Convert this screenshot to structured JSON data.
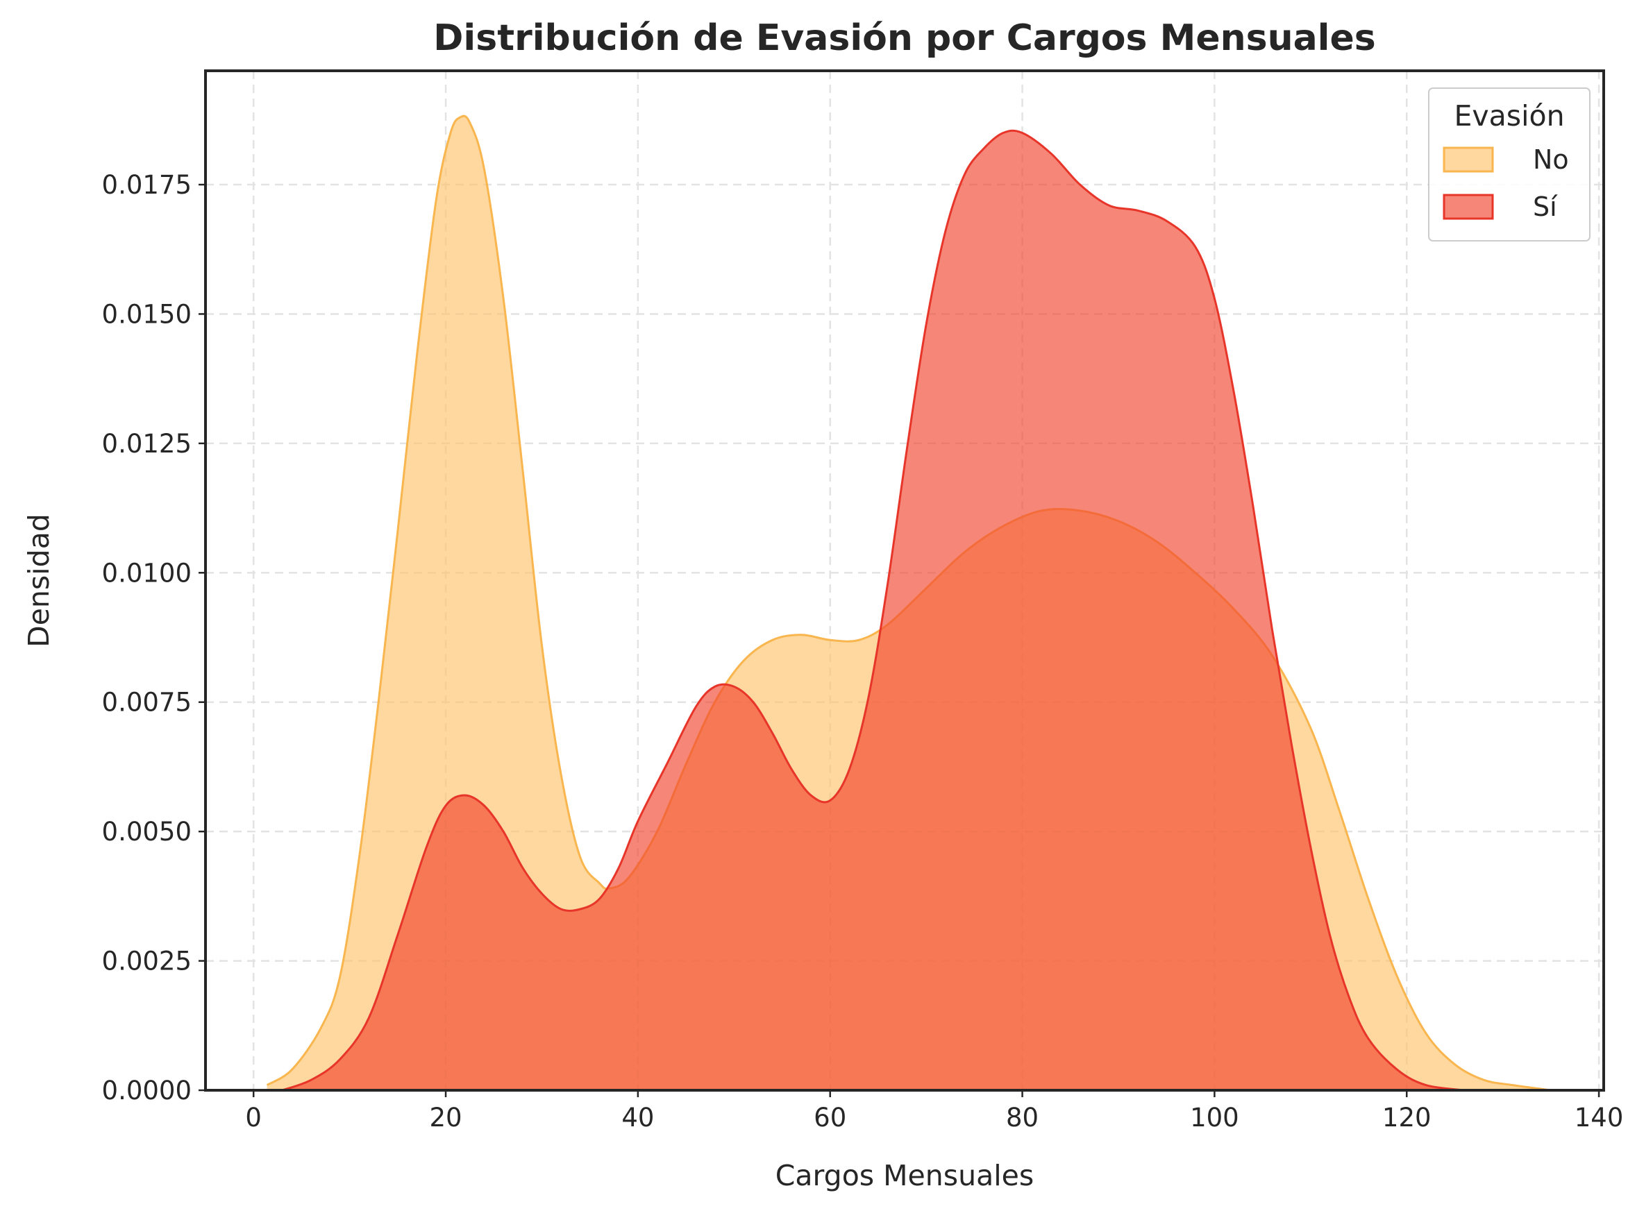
{
  "chart_data": {
    "type": "area",
    "title": "Distribución de Evasión por Cargos Mensuales",
    "xlabel": "Cargos Mensuales",
    "ylabel": "Densidad",
    "xlim": [
      -5,
      140.5
    ],
    "ylim": [
      0,
      0.0197
    ],
    "xticks": [
      0,
      20,
      40,
      60,
      80,
      100,
      120,
      140
    ],
    "xtick_labels": [
      "0",
      "20",
      "40",
      "60",
      "80",
      "100",
      "120",
      "140"
    ],
    "yticks": [
      0,
      0.0025,
      0.005,
      0.0075,
      0.01,
      0.0125,
      0.015,
      0.0175
    ],
    "ytick_labels": [
      "0.0000",
      "0.0025",
      "0.0050",
      "0.0075",
      "0.0100",
      "0.0125",
      "0.0150",
      "0.0175"
    ],
    "grid": true,
    "legend": {
      "title": "Evasión",
      "position": "top-right"
    },
    "series": [
      {
        "name": "No",
        "color": "#fdc36b",
        "edge_color": "#f9b54e",
        "points": [
          [
            1.4,
            0.0001
          ],
          [
            4,
            0.0004
          ],
          [
            7,
            0.0012
          ],
          [
            9,
            0.0022
          ],
          [
            11,
            0.0045
          ],
          [
            13,
            0.0075
          ],
          [
            15,
            0.0108
          ],
          [
            17,
            0.0142
          ],
          [
            19,
            0.0172
          ],
          [
            20.5,
            0.0185
          ],
          [
            21.5,
            0.0188
          ],
          [
            22.5,
            0.0187
          ],
          [
            24,
            0.0178
          ],
          [
            26,
            0.0153
          ],
          [
            28,
            0.012
          ],
          [
            30,
            0.0086
          ],
          [
            32,
            0.0061
          ],
          [
            34,
            0.0045
          ],
          [
            36,
            0.004
          ],
          [
            37,
            0.0039
          ],
          [
            39,
            0.0041
          ],
          [
            42,
            0.005
          ],
          [
            45,
            0.0063
          ],
          [
            48,
            0.0075
          ],
          [
            51,
            0.0083
          ],
          [
            54,
            0.0087
          ],
          [
            57,
            0.0088
          ],
          [
            60,
            0.0087
          ],
          [
            63,
            0.0087
          ],
          [
            66,
            0.009
          ],
          [
            70,
            0.0097
          ],
          [
            74,
            0.0104
          ],
          [
            78,
            0.0109
          ],
          [
            82,
            0.0112
          ],
          [
            86,
            0.0112
          ],
          [
            90,
            0.011
          ],
          [
            94,
            0.0106
          ],
          [
            98,
            0.01
          ],
          [
            102,
            0.0093
          ],
          [
            106,
            0.0084
          ],
          [
            110,
            0.007
          ],
          [
            113,
            0.0054
          ],
          [
            116,
            0.0037
          ],
          [
            119,
            0.0022
          ],
          [
            122,
            0.0011
          ],
          [
            125,
            0.0005
          ],
          [
            128,
            0.0002
          ],
          [
            131,
            0.0001
          ],
          [
            135,
            0.0
          ]
        ]
      },
      {
        "name": "Sí",
        "color": "#f1452e",
        "edge_color": "#e8352a",
        "points": [
          [
            3,
            0.0
          ],
          [
            6,
            0.0002
          ],
          [
            9,
            0.0006
          ],
          [
            12,
            0.0014
          ],
          [
            15,
            0.003
          ],
          [
            18,
            0.0047
          ],
          [
            20,
            0.0055
          ],
          [
            22,
            0.0057
          ],
          [
            24,
            0.0055
          ],
          [
            26,
            0.005
          ],
          [
            28,
            0.0043
          ],
          [
            30,
            0.0038
          ],
          [
            32,
            0.0035
          ],
          [
            34,
            0.0035
          ],
          [
            36,
            0.0037
          ],
          [
            38,
            0.0043
          ],
          [
            40,
            0.0052
          ],
          [
            43,
            0.0063
          ],
          [
            46,
            0.0074
          ],
          [
            48,
            0.0078
          ],
          [
            50,
            0.0078
          ],
          [
            52,
            0.0075
          ],
          [
            54,
            0.0069
          ],
          [
            56,
            0.0062
          ],
          [
            58,
            0.0057
          ],
          [
            60,
            0.0056
          ],
          [
            62,
            0.0062
          ],
          [
            64,
            0.0076
          ],
          [
            66,
            0.0098
          ],
          [
            68,
            0.0124
          ],
          [
            70,
            0.0148
          ],
          [
            72,
            0.0166
          ],
          [
            74,
            0.0177
          ],
          [
            76,
            0.0182
          ],
          [
            78,
            0.0185
          ],
          [
            80,
            0.0185
          ],
          [
            83,
            0.0181
          ],
          [
            86,
            0.0175
          ],
          [
            89,
            0.0171
          ],
          [
            92,
            0.017
          ],
          [
            95,
            0.0168
          ],
          [
            98,
            0.0163
          ],
          [
            100,
            0.0153
          ],
          [
            102,
            0.0135
          ],
          [
            104,
            0.0113
          ],
          [
            106,
            0.0089
          ],
          [
            108,
            0.0067
          ],
          [
            110,
            0.0047
          ],
          [
            112,
            0.003
          ],
          [
            114,
            0.0018
          ],
          [
            116,
            0.001
          ],
          [
            119,
            0.0004
          ],
          [
            122,
            0.0001
          ],
          [
            126,
            0.0
          ]
        ]
      }
    ]
  }
}
